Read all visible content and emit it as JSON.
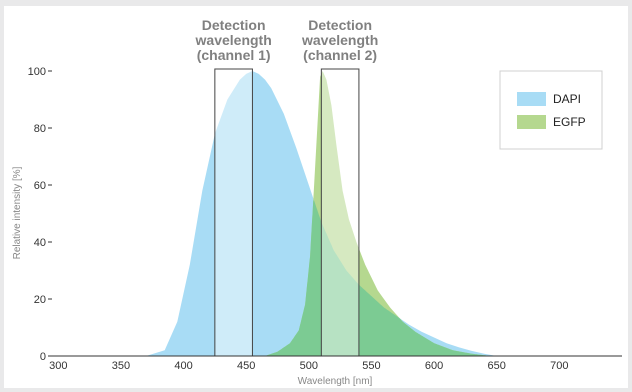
{
  "chart_data": {
    "type": "area",
    "title": "",
    "xlabel": "Wavelength [nm]",
    "ylabel": "Relative intensity  [%]",
    "xlim": [
      295,
      750
    ],
    "ylim": [
      0,
      100
    ],
    "x_ticks": [
      300,
      350,
      400,
      450,
      500,
      550,
      600,
      650,
      700
    ],
    "y_ticks": [
      0,
      20,
      40,
      60,
      80,
      100
    ],
    "grid": false,
    "legend_position": "top-right",
    "series": [
      {
        "name": "DAPI",
        "color": "#a8dcf5",
        "x": [
          370,
          385,
          395,
          405,
          415,
          425,
          435,
          445,
          450,
          455,
          460,
          465,
          470,
          480,
          490,
          500,
          510,
          520,
          530,
          540,
          550,
          560,
          570,
          580,
          590,
          600,
          610,
          620,
          630,
          640,
          650
        ],
        "y": [
          0,
          2,
          12,
          32,
          58,
          78,
          90,
          97,
          99,
          100,
          99,
          97,
          94,
          85,
          73,
          60,
          47,
          37,
          30,
          25,
          21,
          17,
          14,
          11,
          8.5,
          6.5,
          4.5,
          3,
          1.8,
          0.8,
          0
        ]
      },
      {
        "name": "EGFP",
        "color": "#b5d88f",
        "x": [
          465,
          475,
          485,
          492,
          497,
          501,
          504,
          507,
          509,
          511,
          514,
          518,
          522,
          527,
          532,
          538,
          545,
          555,
          565,
          575,
          585,
          600,
          615,
          630,
          645
        ],
        "y": [
          0,
          1.5,
          4.5,
          9,
          18,
          35,
          58,
          82,
          98,
          100,
          97,
          88,
          74,
          58,
          48,
          40,
          32,
          23,
          17,
          12,
          8.5,
          4.5,
          2,
          0.8,
          0
        ]
      }
    ],
    "bands": [
      {
        "label_lines": [
          "Detection",
          "wavelength",
          "(channel 1)"
        ],
        "x_start": 425,
        "x_end": 455
      },
      {
        "label_lines": [
          "Detection",
          "wavelength",
          "(channel 2)"
        ],
        "x_start": 510,
        "x_end": 540
      }
    ]
  }
}
